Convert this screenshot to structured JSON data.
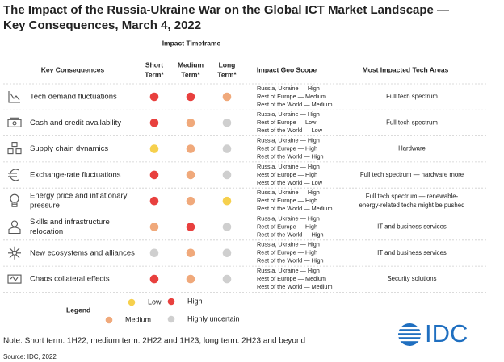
{
  "header": {
    "title_lines": [
      "The Impact of the Russia-Ukraine War on the Global ICT Market Landscape —",
      "Key Consequences, March 4, 2022"
    ]
  },
  "table": {
    "group_header": "Impact Timeframe",
    "columns": [
      [
        "Key Consequences"
      ],
      [
        "Short",
        "Term*"
      ],
      [
        "Medium",
        "Term*"
      ],
      [
        "Long",
        "Term*"
      ],
      [
        "Impact Geo Scope"
      ],
      [
        "Most Impacted Tech Areas"
      ]
    ],
    "rows": [
      {
        "name": [
          "Tech demand fluctuations"
        ],
        "short": "High",
        "medium": "High",
        "long": "Medium",
        "geo": [
          "Russia, Ukraine — High",
          "Rest of Europe — Medium",
          "Rest of the World — Medium"
        ],
        "tech": [
          "Full tech spectrum"
        ]
      },
      {
        "name": [
          "Cash and credit availability"
        ],
        "short": "High",
        "medium": "Medium",
        "long": "Highly uncertain",
        "geo": [
          "Russia, Ukraine — High",
          "Rest of Europe — Low",
          "Rest of the World — Low"
        ],
        "tech": [
          "Full tech spectrum"
        ]
      },
      {
        "name": [
          "Supply chain dynamics"
        ],
        "short": "Low",
        "medium": "Medium",
        "long": "Highly uncertain",
        "geo": [
          "Russia, Ukraine — High",
          "Rest of Europe — High",
          "Rest of the World — High"
        ],
        "tech": [
          "Hardware"
        ]
      },
      {
        "name": [
          "Exchange-rate fluctuations"
        ],
        "short": "High",
        "medium": "Medium",
        "long": "Highly uncertain",
        "geo": [
          "Russia, Ukraine — High",
          "Rest of Europe — High",
          "Rest of the World — Low"
        ],
        "tech": [
          "Full tech spectrum — hardware more"
        ]
      },
      {
        "name": [
          "Energy price and inflationary",
          "pressure"
        ],
        "short": "High",
        "medium": "Medium",
        "long": "Low",
        "geo": [
          "Russia, Ukraine — High",
          "Rest of Europe — High",
          "Rest of the World — Medium"
        ],
        "tech": [
          "Full tech spectrum — renewable-",
          "energy-related techs might be pushed"
        ]
      },
      {
        "name": [
          "Skills and infrastructure",
          "relocation"
        ],
        "short": "Medium",
        "medium": "High",
        "long": "Highly uncertain",
        "geo": [
          "Russia, Ukraine — High",
          "Rest of Europe — High",
          "Rest of the World — High"
        ],
        "tech": [
          "IT and business services"
        ]
      },
      {
        "name": [
          "New ecosystems and alliances"
        ],
        "short": "Highly uncertain",
        "medium": "Medium",
        "long": "Highly uncertain",
        "geo": [
          "Russia, Ukraine — High",
          "Rest of Europe — High",
          "Rest of the World — High"
        ],
        "tech": [
          "IT and business services"
        ]
      },
      {
        "name": [
          "Chaos collateral effects"
        ],
        "short": "High",
        "medium": "Medium",
        "long": "Highly uncertain",
        "geo": [
          "Russia, Ukraine — High",
          "Rest of Europe — Medium",
          "Rest of the World — Medium"
        ],
        "tech": [
          "Security solutions"
        ]
      }
    ]
  },
  "legend": {
    "title": "Legend",
    "items": [
      {
        "label": "Low",
        "color": "#f6d04d"
      },
      {
        "label": "High",
        "color": "#e8403e"
      },
      {
        "label": "Medium",
        "color": "#f0a97b"
      },
      {
        "label": "Highly uncertain",
        "color": "#cfcfcf"
      }
    ]
  },
  "footer": {
    "note": "Note: Short term: 1H22; medium term: 2H22 and 1H23; long term: 2H23 and beyond",
    "source": "Source: IDC, 2022",
    "logo": "IDC"
  }
}
